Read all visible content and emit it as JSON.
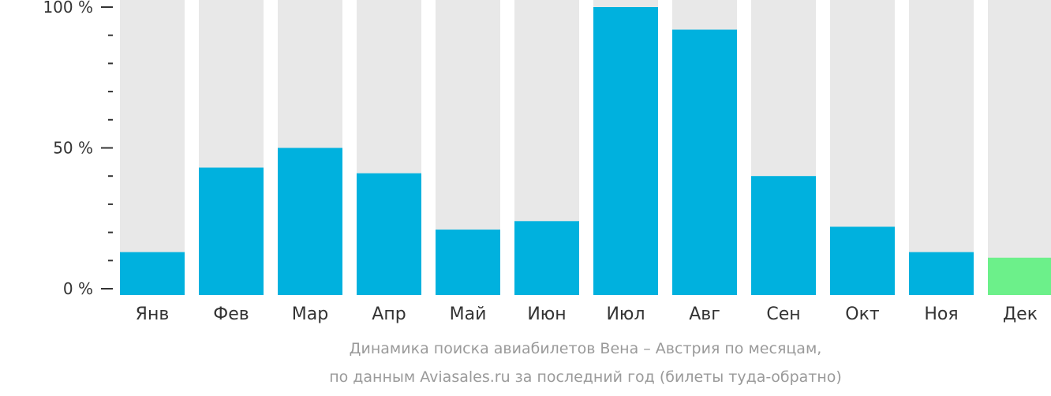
{
  "chart_data": {
    "type": "bar",
    "categories": [
      "Янв",
      "Фев",
      "Мар",
      "Апр",
      "Май",
      "Июн",
      "Июл",
      "Авг",
      "Сен",
      "Окт",
      "Ноя",
      "Дек"
    ],
    "values": [
      13,
      43,
      50,
      41,
      21,
      24,
      100,
      92,
      40,
      22,
      13,
      11
    ],
    "ylim": [
      0,
      100
    ],
    "yticks": [
      {
        "value": 0,
        "label": "0 %"
      },
      {
        "value": 50,
        "label": "50 %"
      },
      {
        "value": 100,
        "label": "100 %"
      }
    ],
    "minor_tick_step": 10,
    "highlight_index": 11,
    "colors": {
      "bar": "#00b1de",
      "highlight_bar": "#6cf08a",
      "track": "#e8e8e8",
      "axis_text": "#333333",
      "caption_text": "#9a9a9a"
    }
  },
  "caption": {
    "line1": "Динамика поиска авиабилетов Вена – Австрия по месяцам,",
    "line2": "по данным Aviasales.ru за последний год (билеты туда-обратно)"
  }
}
